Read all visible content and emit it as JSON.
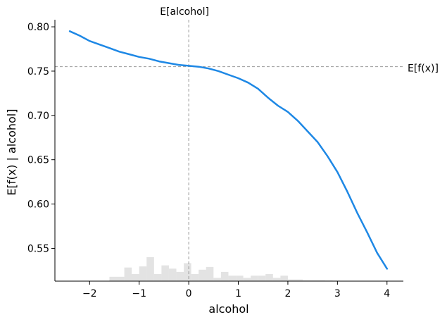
{
  "chart_data": {
    "type": "line",
    "xlabel": "alcohol",
    "ylabel": "E[f(x) | alcohol]",
    "xlim": [
      -2.7,
      4.33
    ],
    "ylim": [
      0.513,
      0.808
    ],
    "x_ticks": [
      -2,
      -1,
      0,
      1,
      2,
      3,
      4
    ],
    "x_tick_labels": [
      "−2",
      "−1",
      "0",
      "1",
      "2",
      "3",
      "4"
    ],
    "y_ticks": [
      0.55,
      0.6,
      0.65,
      0.7,
      0.75,
      0.8
    ],
    "y_tick_labels": [
      "0.55",
      "0.60",
      "0.65",
      "0.70",
      "0.75",
      "0.80"
    ],
    "grid": false,
    "series": [
      {
        "color": "#1e88e5",
        "x": [
          -2.4,
          -2.2,
          -2.0,
          -1.8,
          -1.6,
          -1.4,
          -1.2,
          -1.0,
          -0.8,
          -0.6,
          -0.4,
          -0.2,
          0.0,
          0.2,
          0.4,
          0.6,
          0.8,
          1.0,
          1.2,
          1.4,
          1.6,
          1.8,
          2.0,
          2.2,
          2.4,
          2.6,
          2.8,
          3.0,
          3.2,
          3.4,
          3.6,
          3.8,
          4.0
        ],
        "y": [
          0.795,
          0.79,
          0.784,
          0.78,
          0.776,
          0.772,
          0.769,
          0.766,
          0.764,
          0.761,
          0.759,
          0.757,
          0.756,
          0.755,
          0.753,
          0.75,
          0.746,
          0.742,
          0.737,
          0.73,
          0.72,
          0.711,
          0.704,
          0.694,
          0.682,
          0.67,
          0.654,
          0.636,
          0.614,
          0.59,
          0.568,
          0.545,
          0.527
        ]
      }
    ],
    "reference_lines": {
      "expected_x": {
        "value": 0.0,
        "label": "E[alcohol]"
      },
      "expected_y": {
        "value": 0.755,
        "label": "E[f(x)]"
      }
    },
    "histogram": {
      "color": "#cccccc",
      "bins": [
        {
          "x0": -1.6,
          "x1": -1.45,
          "count": 0.8
        },
        {
          "x0": -1.45,
          "x1": -1.3,
          "count": 0.8
        },
        {
          "x0": -1.3,
          "x1": -1.15,
          "count": 2.5
        },
        {
          "x0": -1.15,
          "x1": -1.0,
          "count": 1.3
        },
        {
          "x0": -1.0,
          "x1": -0.85,
          "count": 2.7
        },
        {
          "x0": -0.85,
          "x1": -0.7,
          "count": 4.4
        },
        {
          "x0": -0.7,
          "x1": -0.55,
          "count": 1.3
        },
        {
          "x0": -0.55,
          "x1": -0.4,
          "count": 2.9
        },
        {
          "x0": -0.4,
          "x1": -0.25,
          "count": 2.3
        },
        {
          "x0": -0.25,
          "x1": -0.1,
          "count": 1.7
        },
        {
          "x0": -0.1,
          "x1": 0.05,
          "count": 3.3
        },
        {
          "x0": 0.05,
          "x1": 0.2,
          "count": 1.3
        },
        {
          "x0": 0.2,
          "x1": 0.35,
          "count": 2.1
        },
        {
          "x0": 0.35,
          "x1": 0.5,
          "count": 2.6
        },
        {
          "x0": 0.5,
          "x1": 0.65,
          "count": 0.6
        },
        {
          "x0": 0.65,
          "x1": 0.8,
          "count": 1.7
        },
        {
          "x0": 0.8,
          "x1": 0.95,
          "count": 1.0
        },
        {
          "x0": 0.95,
          "x1": 1.1,
          "count": 1.0
        },
        {
          "x0": 1.1,
          "x1": 1.25,
          "count": 0.6
        },
        {
          "x0": 1.25,
          "x1": 1.4,
          "count": 1.0
        },
        {
          "x0": 1.4,
          "x1": 1.55,
          "count": 1.0
        },
        {
          "x0": 1.55,
          "x1": 1.7,
          "count": 1.3
        },
        {
          "x0": 1.7,
          "x1": 1.85,
          "count": 0.6
        },
        {
          "x0": 1.85,
          "x1": 2.0,
          "count": 1.0
        },
        {
          "x0": 2.0,
          "x1": 2.15,
          "count": 0.3
        },
        {
          "x0": 2.15,
          "x1": 2.3,
          "count": 0.3
        },
        {
          "x0": 2.3,
          "x1": 2.45,
          "count": 0.2
        },
        {
          "x0": 2.45,
          "x1": 2.6,
          "count": 0.2
        },
        {
          "x0": 2.6,
          "x1": 2.75,
          "count": 0.2
        },
        {
          "x0": 2.75,
          "x1": 2.9,
          "count": 0.15
        },
        {
          "x0": 2.9,
          "x1": 3.05,
          "count": 0.1
        }
      ]
    }
  }
}
